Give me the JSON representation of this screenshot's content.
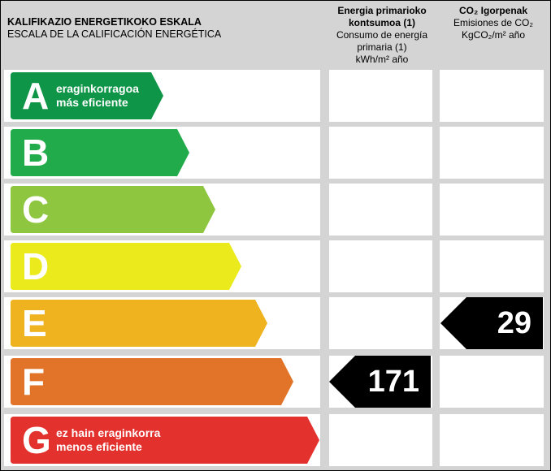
{
  "header": {
    "scale_title_eu": "KALIFIKAZIO ENERGETIKOKO ESKALA",
    "scale_title_es": "ESCALA DE LA CALIFICACIÓN ENERGÉTICA",
    "energy_title_eu": "Energia primarioko kontsumoa (1)",
    "energy_title_es": "Consumo de energía primaria (1)",
    "energy_unit": "kWh/m² año",
    "co2_title_eu": "CO₂ Igorpenak",
    "co2_title_es": "Emisiones de CO₂",
    "co2_unit": "KgCO₂/m² año"
  },
  "classes": [
    {
      "letter": "A",
      "color": "#0f9547",
      "text_top": "eraginkorragoa",
      "text_bottom": "más eficiente"
    },
    {
      "letter": "B",
      "color": "#22ab4a",
      "text_top": "",
      "text_bottom": ""
    },
    {
      "letter": "C",
      "color": "#8fc640",
      "text_top": "",
      "text_bottom": ""
    },
    {
      "letter": "D",
      "color": "#eaea1c",
      "text_top": "",
      "text_bottom": ""
    },
    {
      "letter": "E",
      "color": "#efb320",
      "text_top": "",
      "text_bottom": ""
    },
    {
      "letter": "F",
      "color": "#e2742a",
      "text_top": "",
      "text_bottom": ""
    },
    {
      "letter": "G",
      "color": "#e3312e",
      "text_top": "ez hain eraginkorra",
      "text_bottom": "menos eficiente"
    }
  ],
  "ratings": {
    "energy": {
      "class": "F",
      "value": "171"
    },
    "co2": {
      "class": "E",
      "value": "29"
    }
  },
  "indicator_color": "#000000"
}
